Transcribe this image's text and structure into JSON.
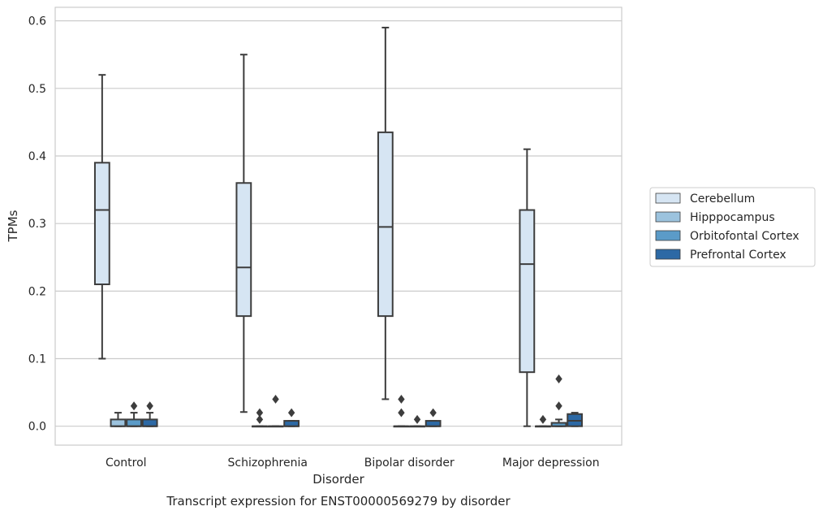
{
  "chart_data": {
    "type": "box",
    "title": "Transcript expression for ENST00000569279 by disorder",
    "xlabel": "Disorder",
    "ylabel": "TPMs",
    "ylim": [
      -0.028,
      0.62
    ],
    "yticks": [
      0.0,
      0.1,
      0.2,
      0.3,
      0.4,
      0.5,
      0.6
    ],
    "ytick_labels": [
      "0.0",
      "0.1",
      "0.2",
      "0.3",
      "0.4",
      "0.5",
      "0.6"
    ],
    "grid": "horizontal",
    "legend_position": "right",
    "categories": [
      "Control",
      "Schizophrenia",
      "Bipolar disorder",
      "Major depression"
    ],
    "series": [
      {
        "name": "Cerebellum",
        "color": "#d6e5f3",
        "boxes": [
          {
            "whislo": 0.1,
            "q1": 0.21,
            "med": 0.32,
            "q3": 0.39,
            "whishi": 0.52,
            "fliers": []
          },
          {
            "whislo": 0.021,
            "q1": 0.163,
            "med": 0.235,
            "q3": 0.36,
            "whishi": 0.55,
            "fliers": []
          },
          {
            "whislo": 0.04,
            "q1": 0.163,
            "med": 0.295,
            "q3": 0.435,
            "whishi": 0.59,
            "fliers": []
          },
          {
            "whislo": 0.0,
            "q1": 0.08,
            "med": 0.24,
            "q3": 0.32,
            "whishi": 0.41,
            "fliers": []
          }
        ]
      },
      {
        "name": "Hipppocampus",
        "color": "#9cc3de",
        "boxes": [
          {
            "whislo": 0.0,
            "q1": 0.0,
            "med": 0.0,
            "q3": 0.01,
            "whishi": 0.02,
            "fliers": []
          },
          {
            "whislo": 0.0,
            "q1": 0.0,
            "med": 0.0,
            "q3": 0.0,
            "whishi": 0.0,
            "fliers": [
              0.01,
              0.02
            ]
          },
          {
            "whislo": 0.0,
            "q1": 0.0,
            "med": 0.0,
            "q3": 0.0,
            "whishi": 0.0,
            "fliers": [
              0.02,
              0.04
            ]
          },
          {
            "whislo": 0.0,
            "q1": 0.0,
            "med": 0.0,
            "q3": 0.0,
            "whishi": 0.0,
            "fliers": [
              0.01
            ]
          }
        ]
      },
      {
        "name": "Orbitofontal Cortex",
        "color": "#5b9bc8",
        "boxes": [
          {
            "whislo": 0.0,
            "q1": 0.0,
            "med": 0.0,
            "q3": 0.01,
            "whishi": 0.02,
            "fliers": [
              0.03
            ]
          },
          {
            "whislo": 0.0,
            "q1": 0.0,
            "med": 0.0,
            "q3": 0.0,
            "whishi": 0.0,
            "fliers": [
              0.04
            ]
          },
          {
            "whislo": 0.0,
            "q1": 0.0,
            "med": 0.0,
            "q3": 0.0,
            "whishi": 0.0,
            "fliers": [
              0.01
            ]
          },
          {
            "whislo": 0.0,
            "q1": 0.0,
            "med": 0.0,
            "q3": 0.005,
            "whishi": 0.01,
            "fliers": [
              0.03,
              0.07
            ]
          }
        ]
      },
      {
        "name": "Prefrontal Cortex",
        "color": "#2c69a5",
        "boxes": [
          {
            "whislo": 0.0,
            "q1": 0.0,
            "med": 0.0,
            "q3": 0.01,
            "whishi": 0.02,
            "fliers": [
              0.03
            ]
          },
          {
            "whislo": 0.0,
            "q1": 0.0,
            "med": 0.0,
            "q3": 0.008,
            "whishi": 0.008,
            "fliers": [
              0.02
            ]
          },
          {
            "whislo": 0.0,
            "q1": 0.0,
            "med": 0.0,
            "q3": 0.008,
            "whishi": 0.008,
            "fliers": [
              0.02
            ]
          },
          {
            "whislo": 0.0,
            "q1": 0.0,
            "med": 0.008,
            "q3": 0.018,
            "whishi": 0.02,
            "fliers": []
          }
        ]
      }
    ]
  }
}
